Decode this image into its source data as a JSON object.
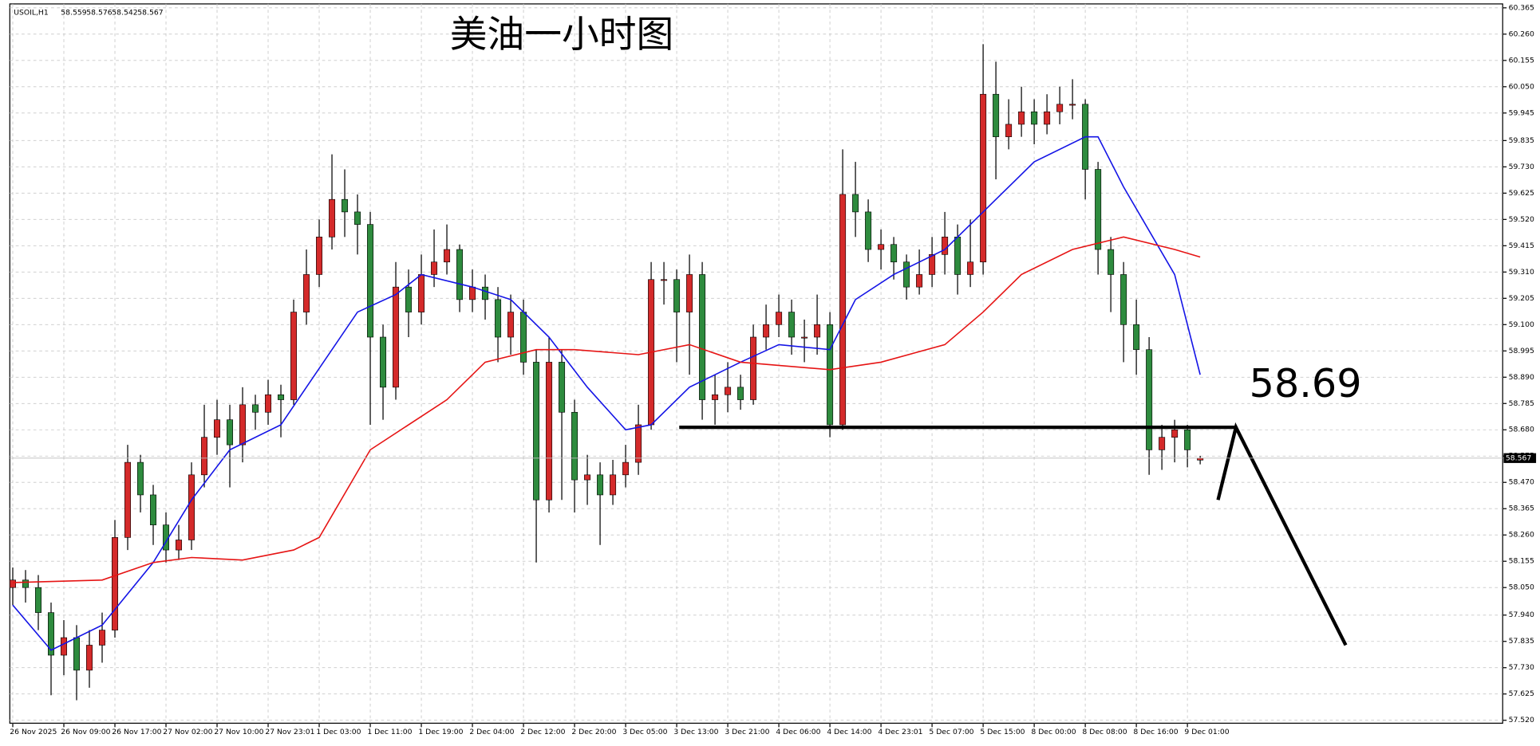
{
  "chart_data": {
    "type": "candlestick",
    "title": "美油一小时图",
    "symbol": "USOIL,H1",
    "up_color": "#d42a2a",
    "down_color": "#2e8b3e",
    "grid": true,
    "xlim": [
      -0.23,
      116.7
    ],
    "ylim": [
      57.52,
      60.365
    ],
    "yticks": [
      {
        "value": 60.365,
        "label": "60.365"
      },
      {
        "value": 60.26,
        "label": "60.260"
      },
      {
        "value": 60.155,
        "label": "60.155"
      },
      {
        "value": 60.05,
        "label": "60.050"
      },
      {
        "value": 59.945,
        "label": "59.945"
      },
      {
        "value": 59.835,
        "label": "59.835"
      },
      {
        "value": 59.73,
        "label": "59.730"
      },
      {
        "value": 59.625,
        "label": "59.625"
      },
      {
        "value": 59.52,
        "label": "59.520"
      },
      {
        "value": 59.415,
        "label": "59.415"
      },
      {
        "value": 59.31,
        "label": "59.310"
      },
      {
        "value": 59.205,
        "label": "59.205"
      },
      {
        "value": 59.1,
        "label": "59.100"
      },
      {
        "value": 58.995,
        "label": "58.995"
      },
      {
        "value": 58.89,
        "label": "58.890"
      },
      {
        "value": 58.785,
        "label": "58.785"
      },
      {
        "value": 58.68,
        "label": "58.680"
      },
      {
        "value": 58.575,
        "label": "58.575"
      },
      {
        "value": 58.47,
        "label": "58.470"
      },
      {
        "value": 58.365,
        "label": "58.365"
      },
      {
        "value": 58.26,
        "label": "58.260"
      },
      {
        "value": 58.155,
        "label": "58.155"
      },
      {
        "value": 58.05,
        "label": "58.050"
      },
      {
        "value": 57.94,
        "label": "57.940"
      },
      {
        "value": 57.835,
        "label": "57.835"
      },
      {
        "value": 57.73,
        "label": "57.730"
      },
      {
        "value": 57.625,
        "label": "57.625"
      },
      {
        "value": 57.52,
        "label": "57.520"
      }
    ],
    "xticks": [
      {
        "value": 0,
        "label": "26 Nov 2025"
      },
      {
        "value": 4,
        "label": "26 Nov 09:00"
      },
      {
        "value": 8,
        "label": "26 Nov 17:00"
      },
      {
        "value": 12,
        "label": "27 Nov 02:00"
      },
      {
        "value": 16,
        "label": "27 Nov 10:00"
      },
      {
        "value": 20,
        "label": "27 Nov 23:01"
      },
      {
        "value": 24,
        "label": "1 Dec 03:00"
      },
      {
        "value": 28,
        "label": "1 Dec 11:00"
      },
      {
        "value": 32,
        "label": "1 Dec 19:00"
      },
      {
        "value": 36,
        "label": "2 Dec 04:00"
      },
      {
        "value": 40,
        "label": "2 Dec 12:00"
      },
      {
        "value": 44,
        "label": "2 Dec 20:00"
      },
      {
        "value": 48,
        "label": "3 Dec 05:00"
      },
      {
        "value": 52,
        "label": "3 Dec 13:00"
      },
      {
        "value": 56,
        "label": "3 Dec 21:00"
      },
      {
        "value": 60,
        "label": "4 Dec 06:00"
      },
      {
        "value": 64,
        "label": "4 Dec 14:00"
      },
      {
        "value": 68,
        "label": "4 Dec 23:01"
      },
      {
        "value": 72,
        "label": "5 Dec 07:00"
      },
      {
        "value": 76,
        "label": "5 Dec 15:00"
      },
      {
        "value": 80,
        "label": "8 Dec 00:00"
      },
      {
        "value": 84,
        "label": "8 Dec 08:00"
      },
      {
        "value": 88,
        "label": "8 Dec 16:00"
      },
      {
        "value": 92,
        "label": "9 Dec 01:00"
      }
    ],
    "open": [
      58.05,
      58.08,
      58.05,
      57.95,
      57.78,
      57.85,
      57.72,
      57.82,
      57.88,
      58.25,
      58.55,
      58.42,
      58.3,
      58.2,
      58.24,
      58.5,
      58.65,
      58.72,
      58.62,
      58.78,
      58.75,
      58.82,
      58.8,
      59.15,
      59.3,
      59.45,
      59.6,
      59.55,
      59.5,
      59.05,
      58.85,
      59.25,
      59.15,
      59.3,
      59.35,
      59.4,
      59.2,
      59.25,
      59.2,
      59.05,
      59.15,
      58.95,
      58.4,
      58.95,
      58.75,
      58.48,
      58.5,
      58.42,
      58.5,
      58.55,
      58.7,
      59.28,
      59.28,
      59.15,
      59.3,
      58.8,
      58.82,
      58.85,
      58.8,
      59.05,
      59.1,
      59.15,
      59.05,
      59.05,
      59.1,
      58.7,
      59.62,
      59.55,
      59.4,
      59.42,
      59.35,
      59.25,
      59.3,
      59.38,
      59.45,
      59.3,
      59.35,
      60.02,
      59.85,
      59.9,
      59.95,
      59.9,
      59.95,
      59.98,
      59.98,
      59.72,
      59.4,
      59.3,
      59.1,
      59.0,
      58.6,
      58.65,
      58.68,
      58.559
    ],
    "high": [
      58.13,
      58.12,
      58.1,
      57.99,
      57.92,
      57.9,
      57.88,
      57.95,
      58.32,
      58.62,
      58.58,
      58.46,
      58.35,
      58.3,
      58.55,
      58.78,
      58.8,
      58.78,
      58.85,
      58.82,
      58.88,
      58.86,
      59.2,
      59.4,
      59.52,
      59.78,
      59.72,
      59.62,
      59.55,
      59.1,
      59.35,
      59.32,
      59.38,
      59.48,
      59.5,
      59.42,
      59.32,
      59.3,
      59.25,
      59.22,
      59.2,
      59.0,
      59.05,
      59.0,
      58.8,
      58.58,
      58.55,
      58.56,
      58.62,
      58.78,
      59.35,
      59.35,
      59.32,
      59.38,
      59.35,
      58.9,
      58.95,
      58.9,
      59.1,
      59.18,
      59.22,
      59.2,
      59.12,
      59.22,
      59.15,
      59.8,
      59.75,
      59.6,
      59.48,
      59.45,
      59.38,
      59.4,
      59.45,
      59.55,
      59.5,
      59.52,
      60.22,
      60.15,
      60.0,
      60.05,
      60.0,
      60.02,
      60.05,
      60.08,
      60.0,
      59.75,
      59.45,
      59.35,
      59.2,
      59.05,
      58.7,
      58.72,
      58.7,
      58.576
    ],
    "low": [
      57.98,
      57.99,
      57.88,
      57.62,
      57.7,
      57.6,
      57.65,
      57.75,
      57.85,
      58.2,
      58.35,
      58.22,
      58.15,
      58.16,
      58.2,
      58.45,
      58.58,
      58.45,
      58.55,
      58.68,
      58.7,
      58.65,
      58.78,
      59.1,
      59.25,
      59.4,
      59.45,
      59.38,
      58.7,
      58.72,
      58.8,
      59.05,
      59.1,
      59.25,
      59.3,
      59.15,
      59.15,
      59.12,
      58.95,
      58.98,
      58.9,
      58.15,
      58.35,
      58.4,
      58.35,
      58.38,
      58.22,
      58.38,
      58.45,
      58.5,
      58.68,
      59.18,
      58.95,
      58.9,
      58.72,
      58.7,
      58.75,
      58.76,
      58.78,
      59.0,
      59.05,
      58.98,
      58.95,
      58.98,
      58.65,
      58.68,
      59.45,
      59.35,
      59.32,
      59.28,
      59.2,
      59.22,
      59.25,
      59.3,
      59.22,
      59.25,
      59.3,
      59.68,
      59.8,
      59.85,
      59.82,
      59.86,
      59.9,
      59.92,
      59.6,
      59.3,
      59.15,
      58.95,
      58.9,
      58.5,
      58.52,
      58.55,
      58.53,
      58.542
    ],
    "close": [
      58.08,
      58.05,
      57.95,
      57.78,
      57.85,
      57.72,
      57.82,
      57.88,
      58.25,
      58.55,
      58.42,
      58.3,
      58.2,
      58.24,
      58.5,
      58.65,
      58.72,
      58.62,
      58.78,
      58.75,
      58.82,
      58.8,
      59.15,
      59.3,
      59.45,
      59.6,
      59.55,
      59.5,
      59.05,
      58.85,
      59.25,
      59.15,
      59.3,
      59.35,
      59.4,
      59.2,
      59.25,
      59.2,
      59.05,
      59.15,
      58.95,
      58.4,
      58.95,
      58.75,
      58.48,
      58.5,
      58.42,
      58.5,
      58.55,
      58.7,
      59.28,
      59.28,
      59.15,
      59.3,
      58.8,
      58.82,
      58.85,
      58.8,
      59.05,
      59.1,
      59.15,
      59.05,
      59.05,
      59.1,
      58.7,
      59.62,
      59.55,
      59.4,
      59.42,
      59.35,
      59.25,
      59.3,
      59.38,
      59.45,
      59.3,
      59.35,
      60.02,
      59.85,
      59.9,
      59.95,
      59.9,
      59.95,
      59.98,
      59.98,
      59.72,
      59.4,
      59.3,
      59.1,
      59.0,
      58.6,
      58.65,
      58.68,
      58.6,
      58.567
    ],
    "lines": [
      {
        "color": "#1414e6",
        "x": [
          0,
          3,
          7,
          11,
          14,
          17,
          21,
          23,
          27,
          30,
          32,
          36,
          39,
          42,
          45,
          48,
          50,
          53,
          57,
          60,
          64,
          66,
          69,
          73,
          76,
          80,
          84,
          85,
          87,
          91,
          93
        ],
        "values": [
          57.98,
          57.8,
          57.9,
          58.15,
          58.4,
          58.6,
          58.7,
          58.85,
          59.15,
          59.22,
          59.3,
          59.25,
          59.2,
          59.05,
          58.85,
          58.68,
          58.7,
          58.85,
          58.95,
          59.02,
          59.0,
          59.2,
          59.3,
          59.4,
          59.55,
          59.75,
          59.85,
          59.85,
          59.65,
          59.3,
          58.9
        ]
      },
      {
        "color": "#e61414",
        "x": [
          0,
          7,
          11,
          14,
          18,
          22,
          24,
          28,
          34,
          37,
          41,
          44,
          49,
          53,
          57,
          64,
          68,
          73,
          76,
          79,
          83,
          87,
          91,
          93
        ],
        "values": [
          58.07,
          58.08,
          58.15,
          58.17,
          58.16,
          58.2,
          58.25,
          58.6,
          58.8,
          58.95,
          59.0,
          59.0,
          58.98,
          59.02,
          58.95,
          58.92,
          58.95,
          59.02,
          59.15,
          59.3,
          59.4,
          59.45,
          59.4,
          59.37
        ]
      }
    ],
    "level": 58.69,
    "level_x": [
      52.2,
      95.9
    ],
    "projection": {
      "x": [
        94.4,
        95.8,
        104.4
      ],
      "values": [
        58.4,
        58.69,
        57.82
      ]
    }
  }
}
